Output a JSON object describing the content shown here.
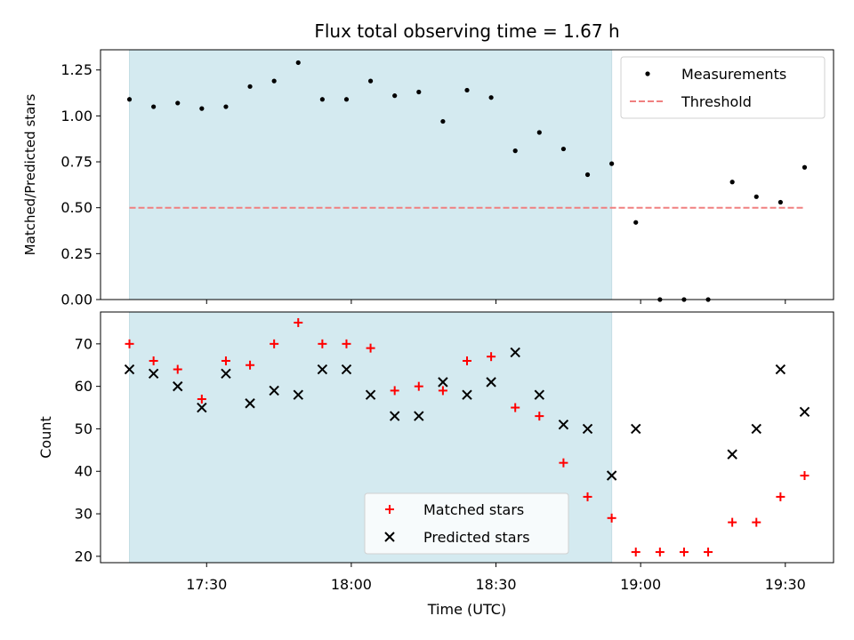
{
  "chart_data": [
    {
      "type": "scatter",
      "title": "Flux total observing time = 1.67 h",
      "ylabel": "Matched/Predicted stars",
      "ylim": [
        0,
        1.36
      ],
      "yticks": [
        "0.00",
        "0.25",
        "0.50",
        "0.75",
        "1.00",
        "1.25"
      ],
      "shaded_span": {
        "start": "17:14",
        "end": "18:54",
        "color": "#d4eaf0"
      },
      "legend": {
        "position": "top-right",
        "entries": [
          "Measurements",
          "Threshold"
        ]
      },
      "series": [
        {
          "name": "Measurements",
          "color": "#000000",
          "marker": "dot",
          "x": [
            "17:14",
            "17:19",
            "17:24",
            "17:29",
            "17:34",
            "17:39",
            "17:44",
            "17:49",
            "17:54",
            "17:59",
            "18:04",
            "18:09",
            "18:14",
            "18:19",
            "18:24",
            "18:29",
            "18:34",
            "18:39",
            "18:44",
            "18:49",
            "18:54",
            "18:59",
            "19:04",
            "19:09",
            "19:14",
            "19:19",
            "19:24",
            "19:29",
            "19:34"
          ],
          "y": [
            1.09,
            1.05,
            1.07,
            1.04,
            1.05,
            1.16,
            1.19,
            1.29,
            1.09,
            1.09,
            1.19,
            1.11,
            1.13,
            0.97,
            1.14,
            1.1,
            0.81,
            0.91,
            0.82,
            0.68,
            0.74,
            0.42,
            0.0,
            0.0,
            0.0,
            0.64,
            0.56,
            0.53,
            0.72
          ]
        },
        {
          "name": "Threshold",
          "color": "#f08080",
          "style": "dashed",
          "x": [
            "17:14",
            "19:34"
          ],
          "y": [
            0.5,
            0.5
          ]
        }
      ]
    },
    {
      "type": "scatter",
      "xlabel": "Time (UTC)",
      "ylabel": "Count",
      "ylim": [
        18.5,
        77.5
      ],
      "yticks": [
        "20",
        "30",
        "40",
        "50",
        "60",
        "70"
      ],
      "xticks": [
        "17:30",
        "18:00",
        "18:30",
        "19:00",
        "19:30"
      ],
      "xlim": [
        "17:08",
        "19:40"
      ],
      "shaded_span": {
        "start": "17:14",
        "end": "18:54",
        "color": "#d4eaf0"
      },
      "legend": {
        "position": "bottom-center",
        "entries": [
          "Matched stars",
          "Predicted stars"
        ]
      },
      "series": [
        {
          "name": "Matched stars",
          "color": "#ff0000",
          "marker": "plus",
          "x": [
            "17:14",
            "17:19",
            "17:24",
            "17:29",
            "17:34",
            "17:39",
            "17:44",
            "17:49",
            "17:54",
            "17:59",
            "18:04",
            "18:09",
            "18:14",
            "18:19",
            "18:24",
            "18:29",
            "18:34",
            "18:39",
            "18:44",
            "18:49",
            "18:54",
            "18:59",
            "19:04",
            "19:09",
            "19:14",
            "19:19",
            "19:24",
            "19:29",
            "19:34"
          ],
          "y": [
            70,
            66,
            64,
            57,
            66,
            65,
            70,
            75,
            70,
            70,
            69,
            59,
            60,
            59,
            66,
            67,
            55,
            53,
            42,
            34,
            29,
            21,
            21,
            21,
            21,
            28,
            28,
            34,
            39
          ]
        },
        {
          "name": "Predicted stars",
          "color": "#000000",
          "marker": "x",
          "x": [
            "17:14",
            "17:19",
            "17:24",
            "17:29",
            "17:34",
            "17:39",
            "17:44",
            "17:49",
            "17:54",
            "17:59",
            "18:04",
            "18:09",
            "18:14",
            "18:19",
            "18:24",
            "18:29",
            "18:34",
            "18:39",
            "18:44",
            "18:49",
            "18:54",
            "18:59",
            "19:19",
            "19:24",
            "19:29",
            "19:34"
          ],
          "y": [
            64,
            63,
            60,
            55,
            63,
            56,
            59,
            58,
            64,
            64,
            58,
            53,
            53,
            61,
            58,
            61,
            68,
            58,
            51,
            50,
            39,
            50,
            44,
            50,
            64,
            54
          ]
        }
      ]
    }
  ]
}
